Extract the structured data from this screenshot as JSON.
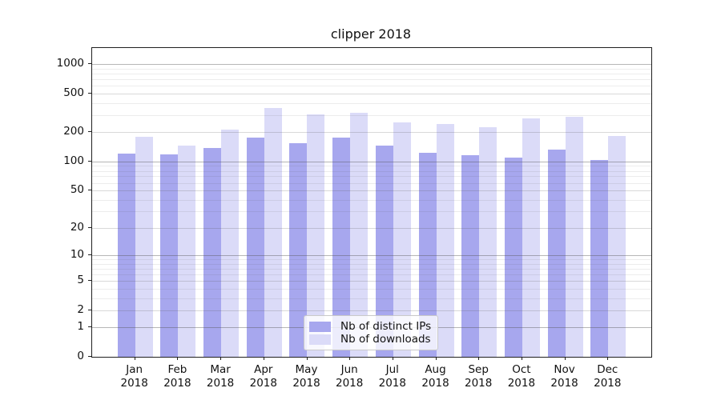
{
  "window": {
    "background_color": "#ffffff"
  },
  "chart_data": {
    "type": "bar",
    "title": "clipper 2018",
    "categories": [
      "Jan",
      "Feb",
      "Mar",
      "Apr",
      "May",
      "Jun",
      "Jul",
      "Aug",
      "Sep",
      "Oct",
      "Nov",
      "Dec"
    ],
    "x_tick_year": "2018",
    "series": [
      {
        "name": "Nb of distinct IPs",
        "color": "#a7a7ee",
        "values": [
          121,
          118,
          139,
          176,
          155,
          177,
          146,
          124,
          116,
          110,
          132,
          104
        ]
      },
      {
        "name": "Nb of downloads",
        "color": "#dbdbf8",
        "values": [
          179,
          146,
          214,
          357,
          307,
          319,
          254,
          244,
          225,
          277,
          290,
          182
        ]
      }
    ],
    "xlabel": "",
    "ylabel": "",
    "yscale": "log1p",
    "yticks": [
      0,
      1,
      2,
      5,
      10,
      20,
      50,
      100,
      200,
      500,
      1000
    ],
    "minor_yticks": [
      3,
      4,
      6,
      7,
      8,
      9,
      30,
      40,
      60,
      70,
      80,
      90,
      300,
      400,
      600,
      700,
      800,
      900
    ],
    "ylim": [
      0,
      1470
    ],
    "grid": true,
    "legend_position": "lower center"
  }
}
